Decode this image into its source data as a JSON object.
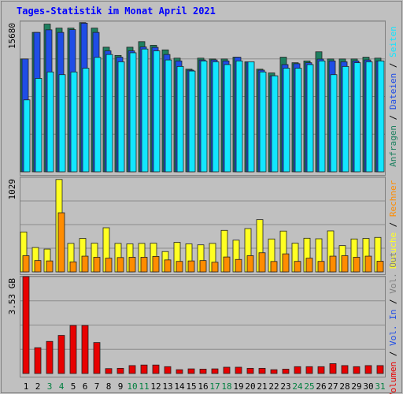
{
  "title": "Tages-Statistik im Monat April 2021",
  "colors": {
    "background": "#c0c0c0",
    "frame": "#808080",
    "grid": "#8c8c8c",
    "title": "#0000ff",
    "weekday_label": "#000000",
    "weekend_label": "#007f3f",
    "anfragen": "#1e8060",
    "dateien": "#1f4de6",
    "seiten": "#12e6ff",
    "besuche": "#ffff22",
    "rechner": "#ff8c00",
    "vol_out": "#808080",
    "vol_in": "#1f4de6",
    "volumen": "#e80000",
    "bar_outline": "#222222"
  },
  "days": [
    "1",
    "2",
    "3",
    "4",
    "5",
    "6",
    "7",
    "8",
    "9",
    "10",
    "11",
    "12",
    "13",
    "14",
    "15",
    "16",
    "17",
    "18",
    "19",
    "20",
    "21",
    "22",
    "23",
    "24",
    "25",
    "26",
    "27",
    "28",
    "29",
    "30",
    "31"
  ],
  "weekend_days": [
    "3",
    "4",
    "10",
    "11",
    "17",
    "18",
    "24",
    "25",
    "31"
  ],
  "chart_data": [
    {
      "type": "bar",
      "name": "hits-files-pages",
      "ylabel_max": "15680",
      "ylim": [
        0,
        15680
      ],
      "grid": true,
      "legend": [
        "Anfragen",
        "Dateien",
        "Seiten"
      ],
      "legend_separator": " / ",
      "series": [
        {
          "name": "Anfragen",
          "color_key": "anfragen",
          "values": [
            11750,
            14520,
            15390,
            14970,
            14970,
            15540,
            14970,
            12980,
            12120,
            12980,
            13560,
            13180,
            12700,
            11840,
            10690,
            11840,
            11750,
            11750,
            11940,
            11460,
            10690,
            10300,
            11940,
            11360,
            11550,
            12500,
            11750,
            11750,
            11750,
            11940,
            11840
          ]
        },
        {
          "name": "Dateien",
          "color_key": "dateien",
          "values": [
            11750,
            14520,
            14790,
            14520,
            14810,
            15480,
            14520,
            12600,
            11940,
            12600,
            13010,
            12960,
            12220,
            11550,
            10590,
            11650,
            11650,
            11550,
            11940,
            11460,
            10590,
            10000,
            11170,
            11260,
            11360,
            11740,
            11550,
            11460,
            11550,
            11650,
            11550
          ]
        },
        {
          "name": "Seiten",
          "color_key": "seiten",
          "values": [
            7490,
            9730,
            10400,
            10120,
            10400,
            10790,
            11920,
            12220,
            11460,
            12400,
            12790,
            12600,
            11650,
            10970,
            10500,
            11550,
            11460,
            11170,
            11550,
            11460,
            10400,
            10000,
            10790,
            10790,
            11170,
            11550,
            10120,
            10970,
            11360,
            11460,
            11550
          ]
        }
      ]
    },
    {
      "type": "bar",
      "name": "visits-hosts",
      "ylabel_max": "1029",
      "ylim": [
        0,
        1029
      ],
      "grid": true,
      "legend": [
        "Besuche",
        "Rechner"
      ],
      "legend_separator": " / ",
      "series": [
        {
          "name": "Besuche",
          "color_key": "besuche",
          "values": [
            434,
            265,
            248,
            1005,
            310,
            364,
            312,
            480,
            310,
            305,
            310,
            312,
            221,
            321,
            305,
            294,
            310,
            452,
            345,
            471,
            569,
            358,
            444,
            312,
            366,
            360,
            446,
            286,
            358,
            364,
            375
          ]
        },
        {
          "name": "Rechner",
          "color_key": "rechner",
          "values": [
            176,
            123,
            119,
            643,
            109,
            171,
            159,
            149,
            156,
            159,
            159,
            168,
            130,
            114,
            119,
            123,
            105,
            162,
            135,
            176,
            208,
            113,
            196,
            114,
            149,
            114,
            171,
            176,
            159,
            171,
            116
          ]
        }
      ]
    },
    {
      "type": "bar",
      "name": "volume",
      "ylabel_max": "3.53 GB",
      "ylim": [
        0,
        3.53
      ],
      "unit": "GB",
      "grid": true,
      "legend": [
        "Volumen",
        "Vol. In",
        "Vol. Out"
      ],
      "legend_separator": " / ",
      "series": [
        {
          "name": "Volumen",
          "color_key": "volumen",
          "values": [
            3.53,
            0.94,
            1.17,
            1.39,
            1.75,
            1.75,
            1.13,
            0.18,
            0.19,
            0.29,
            0.31,
            0.31,
            0.25,
            0.14,
            0.17,
            0.16,
            0.17,
            0.23,
            0.23,
            0.19,
            0.19,
            0.14,
            0.16,
            0.25,
            0.25,
            0.25,
            0.36,
            0.29,
            0.25,
            0.29,
            0.29
          ]
        }
      ]
    }
  ]
}
